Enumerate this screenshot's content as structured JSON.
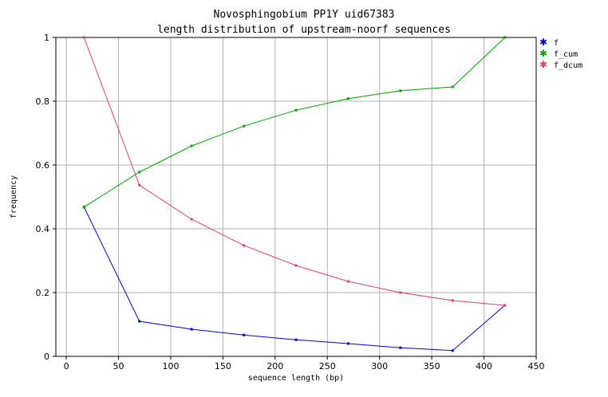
{
  "chart_data": {
    "type": "line",
    "title": "Novosphingobium PP1Y uid67383",
    "subtitle": "length distribution of upstream-noorf sequences",
    "xlabel": "sequence length (bp)",
    "ylabel": "frequency",
    "xlim": [
      -10,
      450
    ],
    "ylim": [
      0,
      1
    ],
    "x_ticks": [
      0,
      50,
      100,
      150,
      200,
      250,
      300,
      350,
      400,
      450
    ],
    "y_ticks": [
      0,
      0.2,
      0.4,
      0.6,
      0.8,
      1
    ],
    "y_tick_labels": [
      "0",
      "0.2",
      "0.4",
      "0.6",
      "0.8",
      "1"
    ],
    "grid": true,
    "legend_position": "top-right",
    "x": [
      17,
      70,
      120,
      170,
      220,
      270,
      320,
      370,
      420
    ],
    "series": [
      {
        "name": "f",
        "color": "#0000cc",
        "values": [
          0.468,
          0.11,
          0.085,
          0.067,
          0.052,
          0.04,
          0.027,
          0.018,
          0.16
        ]
      },
      {
        "name": "f_cum",
        "color": "#00a000",
        "values": [
          0.468,
          0.578,
          0.66,
          0.722,
          0.772,
          0.808,
          0.833,
          0.845,
          1.0
        ]
      },
      {
        "name": "f_dcum",
        "color": "#e0406a",
        "values": [
          1.0,
          0.537,
          0.43,
          0.348,
          0.285,
          0.235,
          0.2,
          0.175,
          0.16
        ]
      }
    ]
  }
}
